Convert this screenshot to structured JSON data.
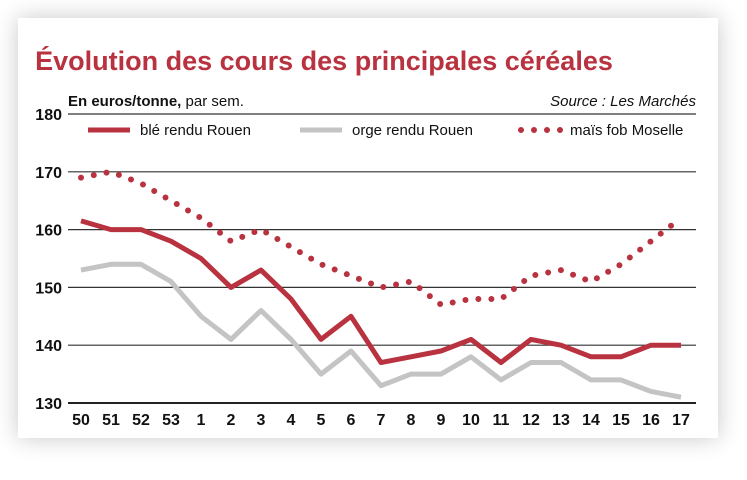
{
  "chart_data": {
    "type": "line",
    "title": "Évolution des cours des principales céréales",
    "unit_label_bold": "En euros/tonne,",
    "unit_label_rest": " par sem.",
    "source": "Source : Les Marchés",
    "categories": [
      "50",
      "51",
      "52",
      "53",
      "1",
      "2",
      "3",
      "4",
      "5",
      "6",
      "7",
      "8",
      "9",
      "10",
      "11",
      "12",
      "13",
      "14",
      "15",
      "16",
      "17"
    ],
    "ylim": [
      130,
      180
    ],
    "yticks": [
      "130",
      "140",
      "150",
      "160",
      "170",
      "180"
    ],
    "grid": true,
    "legend_position": "top",
    "series": [
      {
        "name": "blé rendu Rouen",
        "color": "#b8323f",
        "style": "solid",
        "values": [
          161.5,
          160,
          160,
          158,
          155,
          150,
          153,
          148,
          141,
          145,
          137,
          138,
          139,
          141,
          137,
          141,
          140,
          138,
          138,
          140,
          140
        ]
      },
      {
        "name": "orge rendu Rouen",
        "color": "#c4c4c4",
        "style": "solid",
        "values": [
          153,
          154,
          154,
          151,
          145,
          141,
          146,
          141,
          135,
          139,
          133,
          135,
          135,
          138,
          134,
          137,
          137,
          134,
          134,
          132,
          131
        ]
      },
      {
        "name": "maïs fob Moselle",
        "color": "#b8323f",
        "style": "dotted",
        "values": [
          169,
          170,
          168,
          165,
          162,
          158,
          160,
          157,
          154,
          152,
          150,
          151,
          147,
          148,
          148,
          152,
          153,
          151,
          154,
          158,
          162
        ]
      }
    ]
  }
}
